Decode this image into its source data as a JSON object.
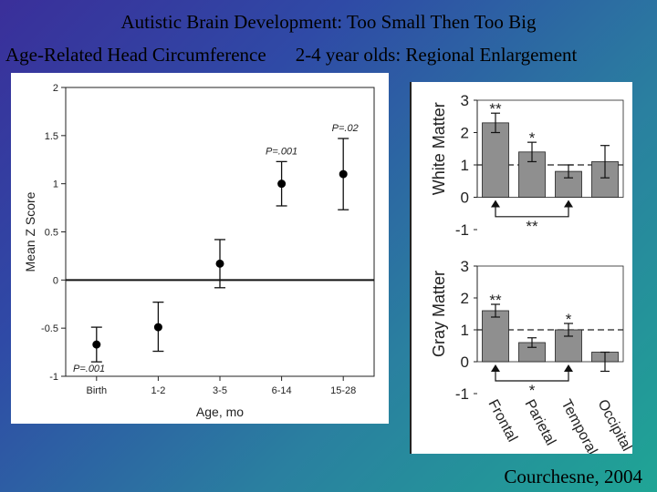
{
  "slide": {
    "title": "Autistic Brain Development: Too Small Then Too Big",
    "subtitle_left": "Age-Related Head Circumference",
    "subtitle_right": "2-4 year olds: Regional Enlargement",
    "credit": "Courchesne, 2004"
  },
  "chart_data": [
    {
      "type": "scatter",
      "title": "",
      "xlabel": "Age, mo",
      "ylabel": "Mean Z Score",
      "categories": [
        "Birth",
        "1-2",
        "3-5",
        "6-14",
        "15-28"
      ],
      "values": [
        -0.67,
        -0.49,
        0.17,
        1.0,
        1.1
      ],
      "error_low": [
        -0.85,
        -0.74,
        -0.08,
        0.77,
        0.73
      ],
      "error_high": [
        -0.49,
        -0.23,
        0.42,
        1.23,
        1.47
      ],
      "ylim": [
        -1,
        2
      ],
      "yticks": [
        "-1",
        "-0.5",
        "0",
        "0.5",
        "1",
        "1.5",
        "2"
      ],
      "reference_line": 0,
      "annotations": [
        {
          "category": "Birth",
          "text": "P=.001"
        },
        {
          "category": "6-14",
          "text": "P=.001"
        },
        {
          "category": "15-28",
          "text": "P=.02"
        }
      ]
    },
    {
      "type": "bar",
      "ylabel": "White Matter",
      "categories": [
        "Frontal",
        "Parietal",
        "Temporal",
        "Occipital"
      ],
      "values": [
        2.3,
        1.4,
        0.8,
        1.1
      ],
      "error_low": [
        2.0,
        1.1,
        0.6,
        0.6
      ],
      "error_high": [
        2.6,
        1.7,
        1.0,
        1.6
      ],
      "ylim": [
        -1,
        3
      ],
      "yticks": [
        "-1",
        "0",
        "1",
        "2",
        "3"
      ],
      "reference_line": 1,
      "significance": [
        "**",
        "*",
        "",
        ""
      ],
      "bracket_label": "**"
    },
    {
      "type": "bar",
      "ylabel": "Gray Matter",
      "categories": [
        "Frontal",
        "Parietal",
        "Temporal",
        "Occipital"
      ],
      "values": [
        1.6,
        0.6,
        1.0,
        0.3
      ],
      "error_low": [
        1.4,
        0.45,
        0.8,
        -0.3
      ],
      "error_high": [
        1.8,
        0.75,
        1.2,
        0.3
      ],
      "ylim": [
        -1,
        3
      ],
      "yticks": [
        "-1",
        "0",
        "1",
        "2",
        "3"
      ],
      "reference_line": 1,
      "significance": [
        "**",
        "",
        "*",
        ""
      ],
      "bracket_label": "*"
    }
  ]
}
